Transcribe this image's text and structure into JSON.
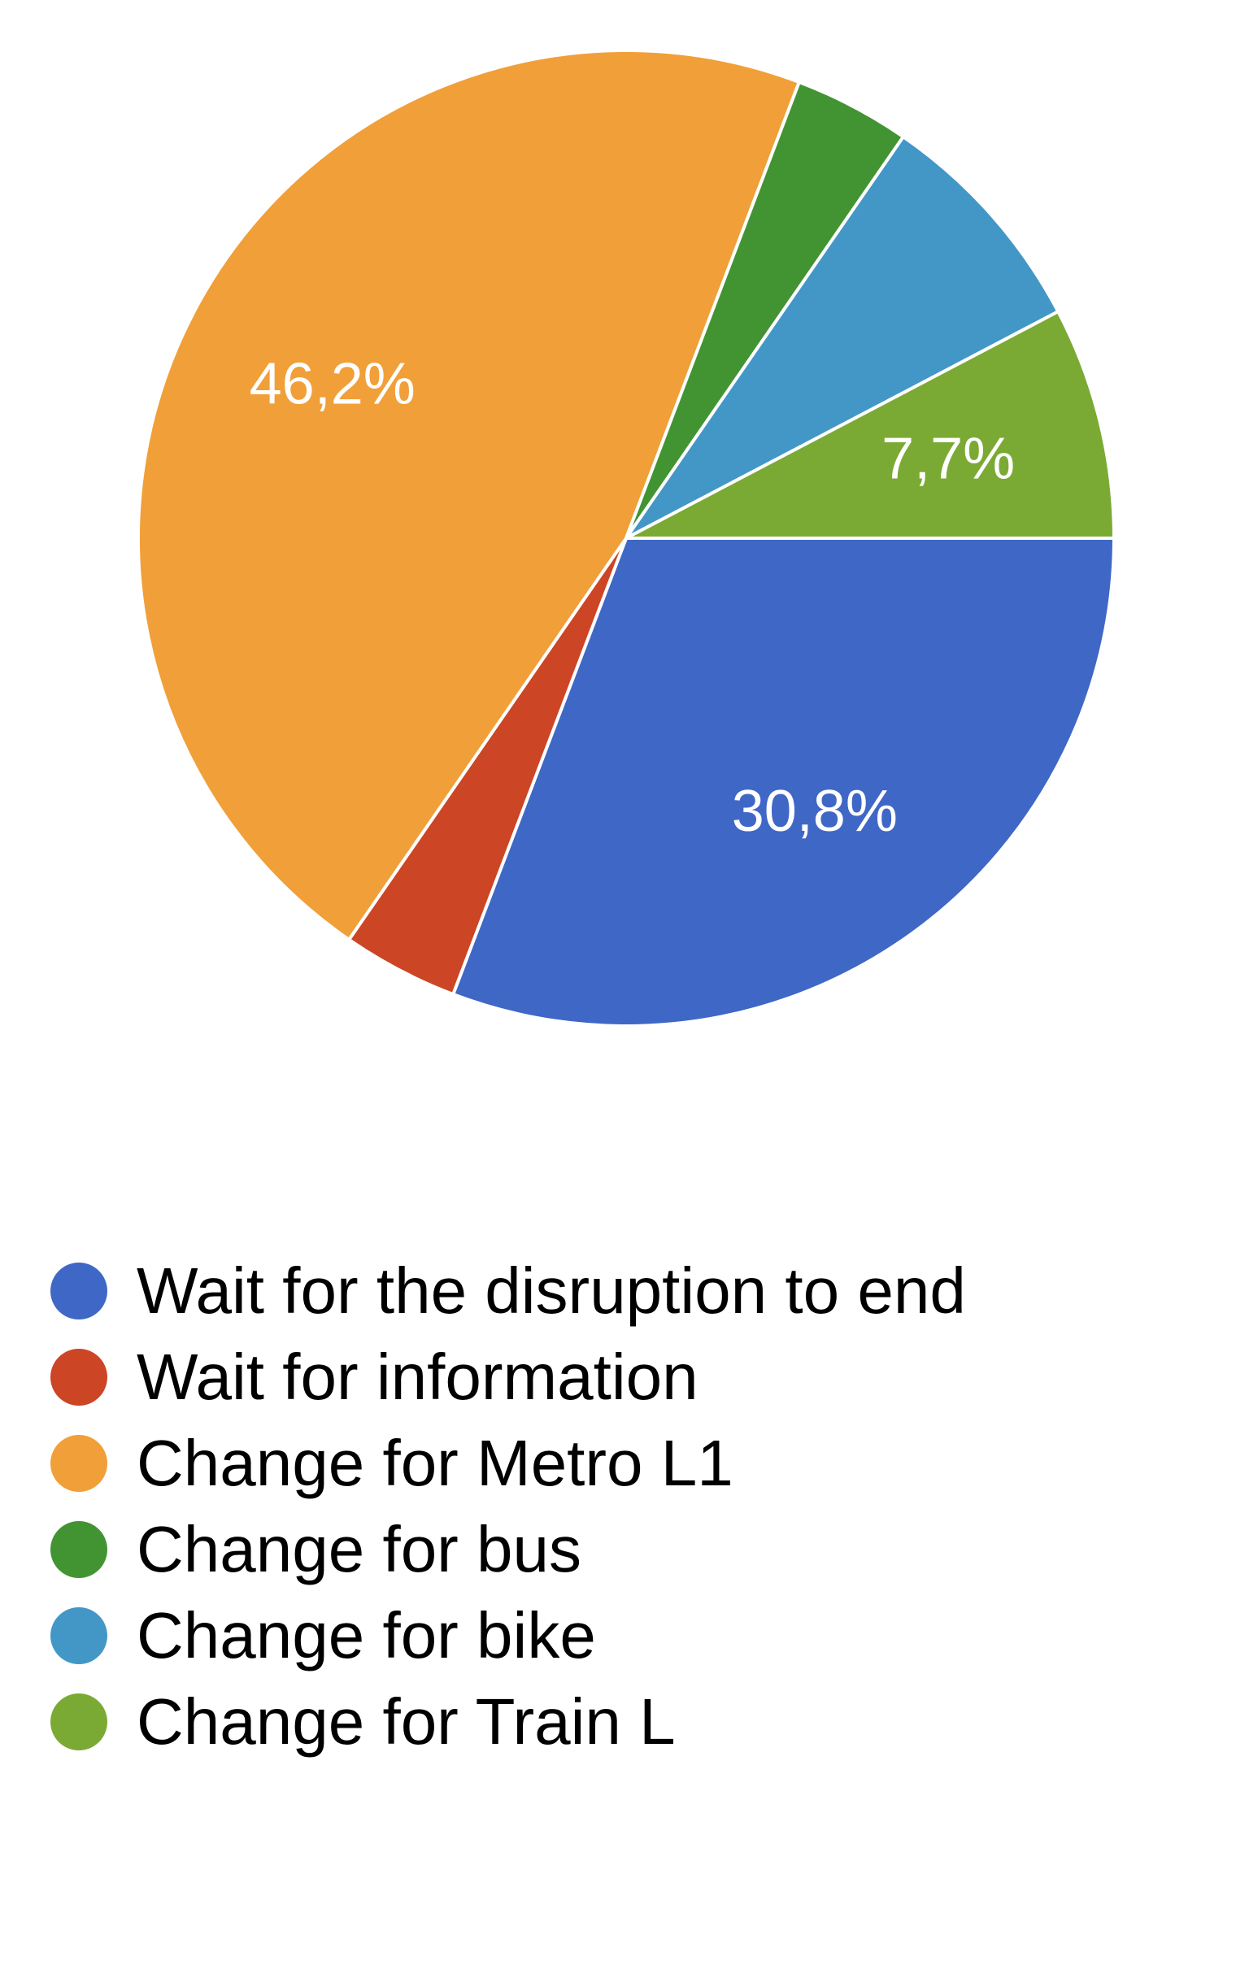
{
  "chart_data": {
    "type": "pie",
    "slices": [
      {
        "name": "Wait for the disruption to end",
        "value": 30.8,
        "label": "30,8%",
        "color": "#3f67c6"
      },
      {
        "name": "Wait for information",
        "value": 3.85,
        "label": "",
        "color": "#cc4525"
      },
      {
        "name": "Change for Metro L1",
        "value": 46.2,
        "label": "46,2%",
        "color": "#f19f38"
      },
      {
        "name": "Change for bus",
        "value": 3.85,
        "label": "",
        "color": "#429432"
      },
      {
        "name": "Change for bike",
        "value": 7.7,
        "label": "",
        "color": "#4397c7"
      },
      {
        "name": "Change for Train L",
        "value": 7.7,
        "label": "7,7%",
        "color": "#7aaa34"
      }
    ],
    "legend_position": "bottom-left",
    "start_angle": "3 o'clock, clockwise"
  }
}
